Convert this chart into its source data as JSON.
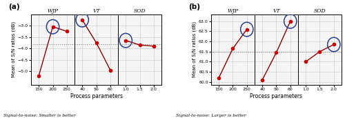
{
  "plot_a": {
    "title": "(a)",
    "ylabel": "Mean of S/N ratios (dB)",
    "xlabel": "Process parameters",
    "signal_note": "Signal-to-noise: Smaller is better",
    "panels": [
      {
        "label": "WJP",
        "x": [
          150,
          200,
          250
        ],
        "y": [
          -5.2,
          -3.05,
          -3.25
        ],
        "circle_idx": 1,
        "xticks": [
          150,
          200,
          250
        ]
      },
      {
        "label": "VT",
        "x": [
          40,
          50,
          60
        ],
        "y": [
          -2.75,
          -3.75,
          -4.95
        ],
        "circle_idx": 0,
        "xticks": [
          40,
          50,
          60
        ]
      },
      {
        "label": "SOD",
        "x": [
          1.0,
          1.5,
          2.0
        ],
        "y": [
          -3.65,
          -3.85,
          -3.9
        ],
        "circle_idx": 0,
        "xticks": [
          1.0,
          1.5,
          2.0
        ]
      }
    ],
    "ylim": [
      -5.6,
      -2.5
    ],
    "yticks": [
      -5.0,
      -4.5,
      -4.0,
      -3.5,
      -3.0
    ],
    "hline": -3.82
  },
  "plot_b": {
    "title": "(b)",
    "ylabel": "Mean of S/N ratios (dB)",
    "xlabel": "Process parameters",
    "signal_note": "Signal-to-noise: Larger is better",
    "panels": [
      {
        "label": "WJP",
        "x": [
          150,
          200,
          250
        ],
        "y": [
          60.2,
          61.65,
          62.6
        ],
        "circle_idx": 2,
        "xticks": [
          150,
          200,
          250
        ]
      },
      {
        "label": "VT",
        "x": [
          40,
          50,
          60
        ],
        "y": [
          60.1,
          61.45,
          63.0
        ],
        "circle_idx": 2,
        "xticks": [
          40,
          50,
          60
        ]
      },
      {
        "label": "SOD",
        "x": [
          1.0,
          1.5,
          2.0
        ],
        "y": [
          61.0,
          61.5,
          61.85
        ],
        "circle_idx": 2,
        "xticks": [
          1.0,
          1.5,
          2.0
        ]
      }
    ],
    "ylim": [
      59.85,
      63.35
    ],
    "yticks": [
      60.0,
      60.5,
      61.0,
      61.5,
      62.0,
      62.5,
      63.0
    ],
    "hline": 61.5
  },
  "line_color": "#8B0000",
  "marker_color": "#CC0000",
  "circle_color": "#2B3F8B",
  "panel_bg": "#f5f5f5",
  "fig_bg": "#ffffff",
  "grid_color": "#d0d0d0"
}
